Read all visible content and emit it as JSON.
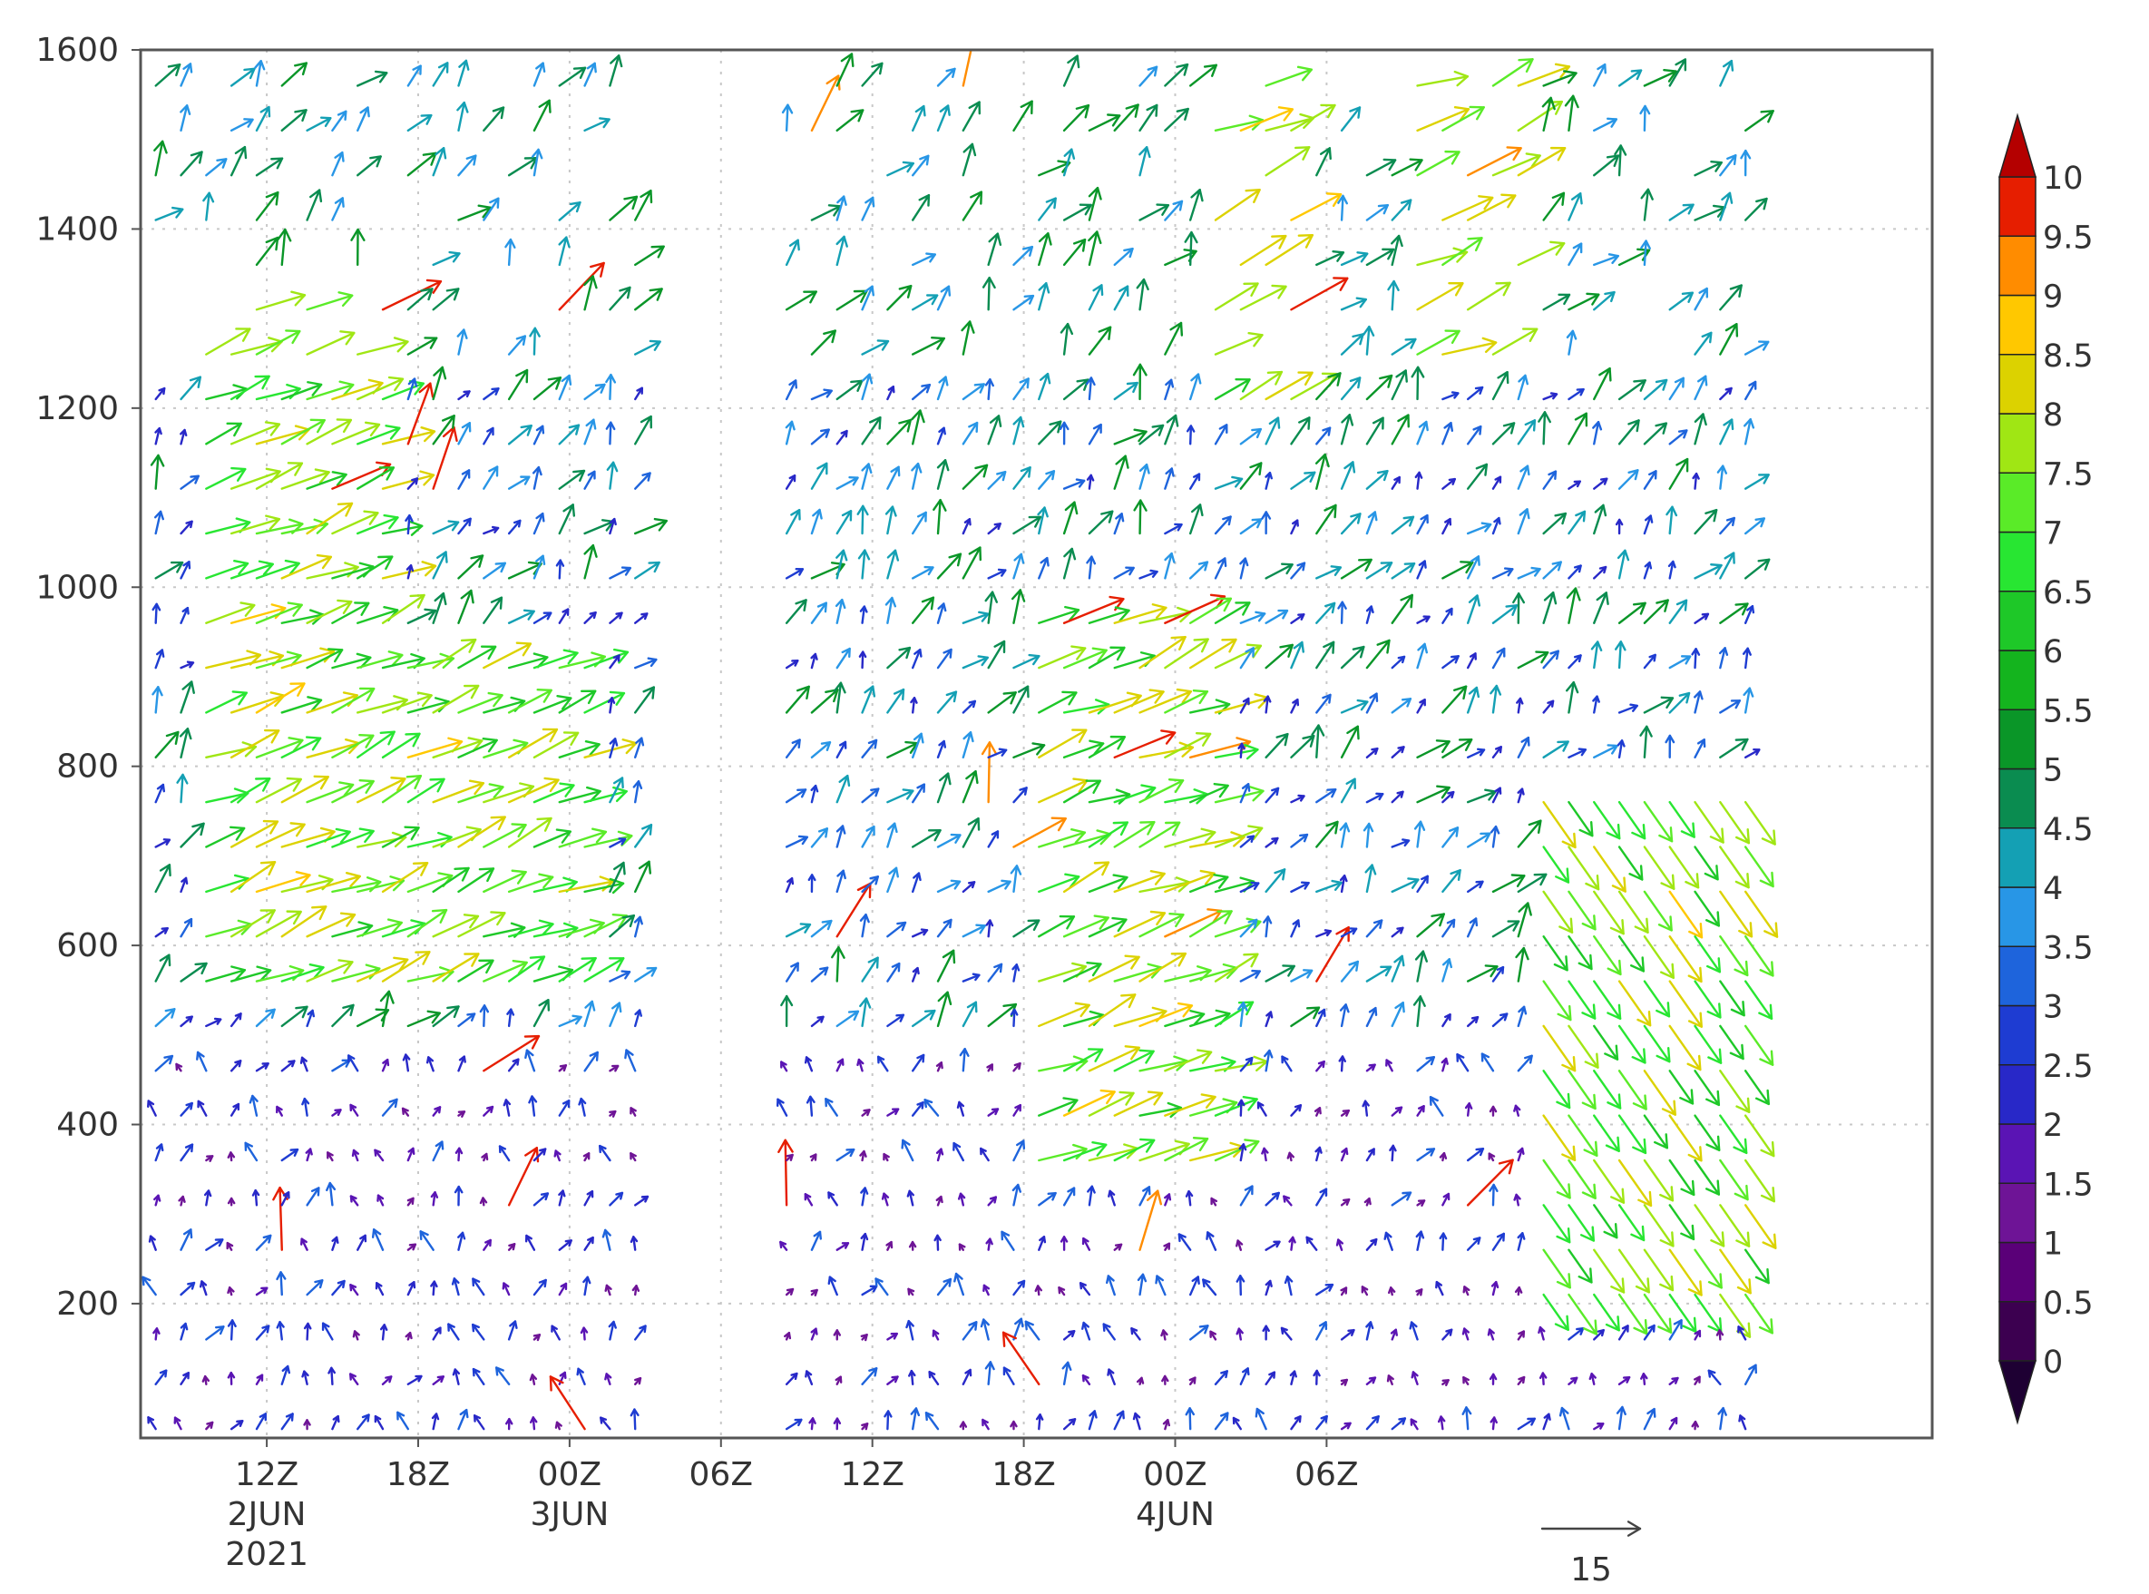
{
  "chart_data": {
    "type": "vector-field",
    "title": "",
    "xlabel": "",
    "ylabel": "",
    "y_ticks": [
      200,
      400,
      600,
      800,
      1000,
      1200,
      1400,
      1600
    ],
    "ylim": [
      50,
      1600
    ],
    "x_range_hours": [
      -5,
      66
    ],
    "x_ticks": [
      {
        "hour": 0,
        "lines": [
          "12Z",
          "2JUN",
          "2021"
        ]
      },
      {
        "hour": 6,
        "lines": [
          "18Z"
        ]
      },
      {
        "hour": 12,
        "lines": [
          "00Z",
          "3JUN"
        ]
      },
      {
        "hour": 18,
        "lines": [
          "06Z"
        ]
      },
      {
        "hour": 24,
        "lines": [
          "12Z"
        ]
      },
      {
        "hour": 30,
        "lines": [
          "18Z"
        ]
      },
      {
        "hour": 36,
        "lines": [
          "00Z",
          "4JUN"
        ]
      },
      {
        "hour": 42,
        "lines": [
          "06Z"
        ]
      }
    ],
    "reference_vector": {
      "value": 15,
      "label": "15"
    },
    "colorbar": {
      "levels": [
        0,
        0.5,
        1,
        1.5,
        2,
        2.5,
        3,
        3.5,
        4,
        4.5,
        5,
        5.5,
        6,
        6.5,
        7,
        7.5,
        8,
        8.5,
        9,
        9.5,
        10
      ],
      "labels": [
        "0",
        "0.5",
        "1",
        "1.5",
        "2",
        "2.5",
        "3",
        "3.5",
        "4",
        "4.5",
        "5",
        "5.5",
        "6",
        "6.5",
        "7",
        "7.5",
        "8",
        "8.5",
        "9",
        "9.5",
        "10"
      ],
      "colors": [
        "#1e0033",
        "#3c0050",
        "#5a0078",
        "#6e1496",
        "#5a14b4",
        "#2828c8",
        "#1e3cd2",
        "#1e64dc",
        "#2896e6",
        "#14a0b4",
        "#0a8c50",
        "#0a9628",
        "#14b41e",
        "#1ec828",
        "#28e632",
        "#5aeb28",
        "#a0e614",
        "#dcd200",
        "#ffc800",
        "#ff8c00",
        "#e61e00",
        "#b40000"
      ],
      "extend": "both"
    },
    "wind_field": {
      "description": "Height-time section of wind vectors colored by speed",
      "time_step_hours": 1,
      "height_step_m": 50,
      "segments": [
        {
          "from_hour": -5,
          "to_hour": 15.5,
          "top": 1560
        },
        {
          "from_hour": 20,
          "to_hour": 59,
          "top": 1580
        }
      ]
    }
  }
}
